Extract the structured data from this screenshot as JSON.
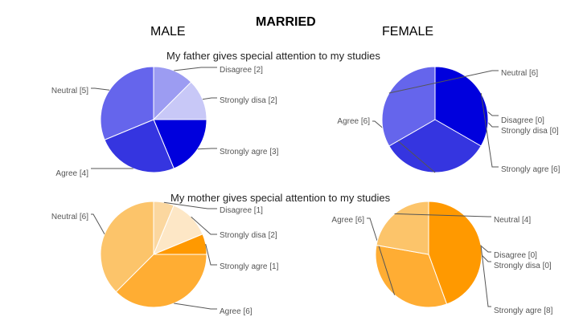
{
  "headers": {
    "left": "MALE",
    "center": "MARRIED",
    "right": "FEMALE"
  },
  "questions": {
    "father": "My father gives special attention to my studies",
    "mother": "My mother gives special attention to my studies"
  },
  "colors": {
    "father": {
      "Disagree": "#9c9cf2",
      "Strongly disa": "#c8c8f7",
      "Strongly agre": "#0000dd",
      "Agree": "#3535e0",
      "Neutral": "#6565ec"
    },
    "mother": {
      "Disagree": "#fbd79f",
      "Strongly disa": "#fde7c6",
      "Strongly agre": "#ff9900",
      "Agree": "#ffad33",
      "Neutral": "#fcc46a"
    }
  },
  "chart_data": [
    {
      "type": "pie",
      "id": "father-male",
      "question": "My father gives special attention to my studies",
      "group": "MALE",
      "slices": [
        {
          "label": "Disagree",
          "value": 2
        },
        {
          "label": "Strongly disa",
          "value": 2
        },
        {
          "label": "Strongly agre",
          "value": 3
        },
        {
          "label": "Agree",
          "value": 4
        },
        {
          "label": "Neutral",
          "value": 5
        }
      ]
    },
    {
      "type": "pie",
      "id": "father-female",
      "question": "My father gives special attention to my studies",
      "group": "FEMALE",
      "slices": [
        {
          "label": "Disagree",
          "value": 0
        },
        {
          "label": "Strongly disa",
          "value": 0
        },
        {
          "label": "Strongly agre",
          "value": 6
        },
        {
          "label": "Agree",
          "value": 6
        },
        {
          "label": "Neutral",
          "value": 6
        }
      ]
    },
    {
      "type": "pie",
      "id": "mother-male",
      "question": "My mother gives special attention to my studies",
      "group": "MALE",
      "slices": [
        {
          "label": "Disagree",
          "value": 1
        },
        {
          "label": "Strongly disa",
          "value": 2
        },
        {
          "label": "Strongly agre",
          "value": 1
        },
        {
          "label": "Agree",
          "value": 6
        },
        {
          "label": "Neutral",
          "value": 6
        }
      ]
    },
    {
      "type": "pie",
      "id": "mother-female",
      "question": "My mother gives special attention to my studies",
      "group": "FEMALE",
      "slices": [
        {
          "label": "Disagree",
          "value": 0
        },
        {
          "label": "Strongly disa",
          "value": 0
        },
        {
          "label": "Strongly agre",
          "value": 8
        },
        {
          "label": "Agree",
          "value": 6
        },
        {
          "label": "Neutral",
          "value": 4
        }
      ]
    }
  ]
}
